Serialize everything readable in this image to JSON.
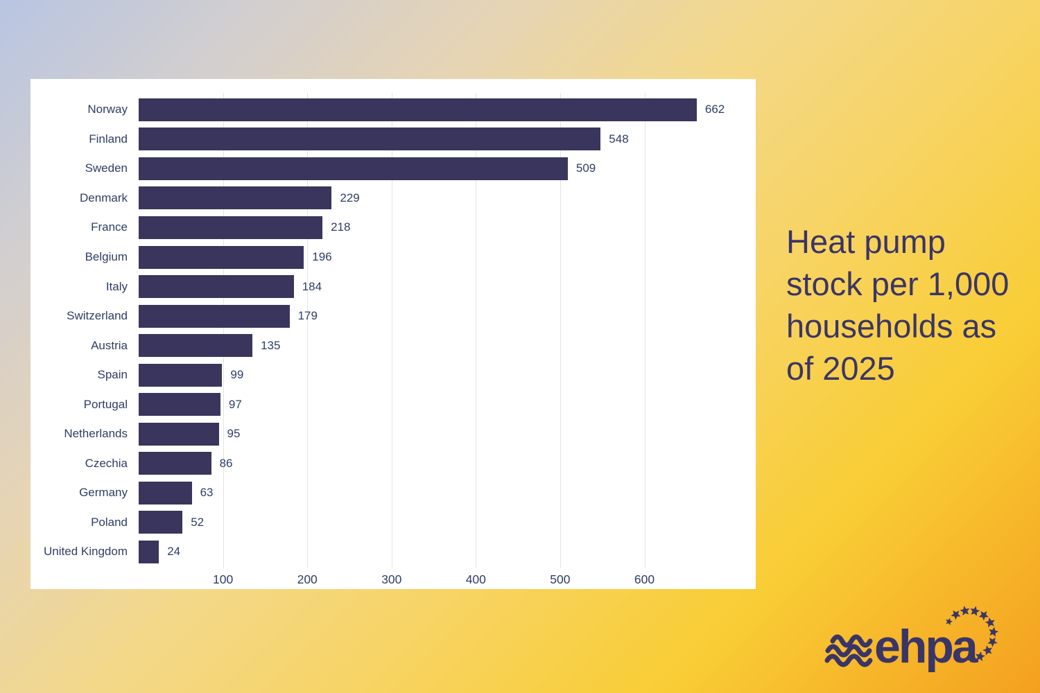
{
  "page": {
    "background_gradient": [
      "#b8c5e2",
      "#e6d4b4",
      "#f7d465",
      "#f4a01f"
    ]
  },
  "chart_data": {
    "type": "bar",
    "orientation": "horizontal",
    "title": "Heat pump stock per 1,000 households as of 2025",
    "categories": [
      "Norway",
      "Finland",
      "Sweden",
      "Denmark",
      "France",
      "Belgium",
      "Italy",
      "Switzerland",
      "Austria",
      "Spain",
      "Portugal",
      "Netherlands",
      "Czechia",
      "Germany",
      "Poland",
      "United Kingdom"
    ],
    "values": [
      662,
      548,
      509,
      229,
      218,
      196,
      184,
      179,
      135,
      99,
      97,
      95,
      86,
      63,
      52,
      24
    ],
    "xticks": [
      100,
      200,
      300,
      400,
      500,
      600
    ],
    "xlim": [
      0,
      732
    ],
    "grid": true,
    "value_labels": true,
    "bar_color": "#3a355c",
    "text_color": "#2e3d64",
    "gridline_color": "#e4e4e8",
    "plot_background": "#ffffff",
    "legend": "none"
  },
  "side_title": {
    "text": "Heat pump stock per 1,000 households as of 2025",
    "lines": [
      "Heat pump",
      "stock per 1,000",
      "households as",
      "of 2025"
    ],
    "color": "#3a3567"
  },
  "logo": {
    "wordmark": "ehpa",
    "color": "#3a3567",
    "star_count": 11
  }
}
